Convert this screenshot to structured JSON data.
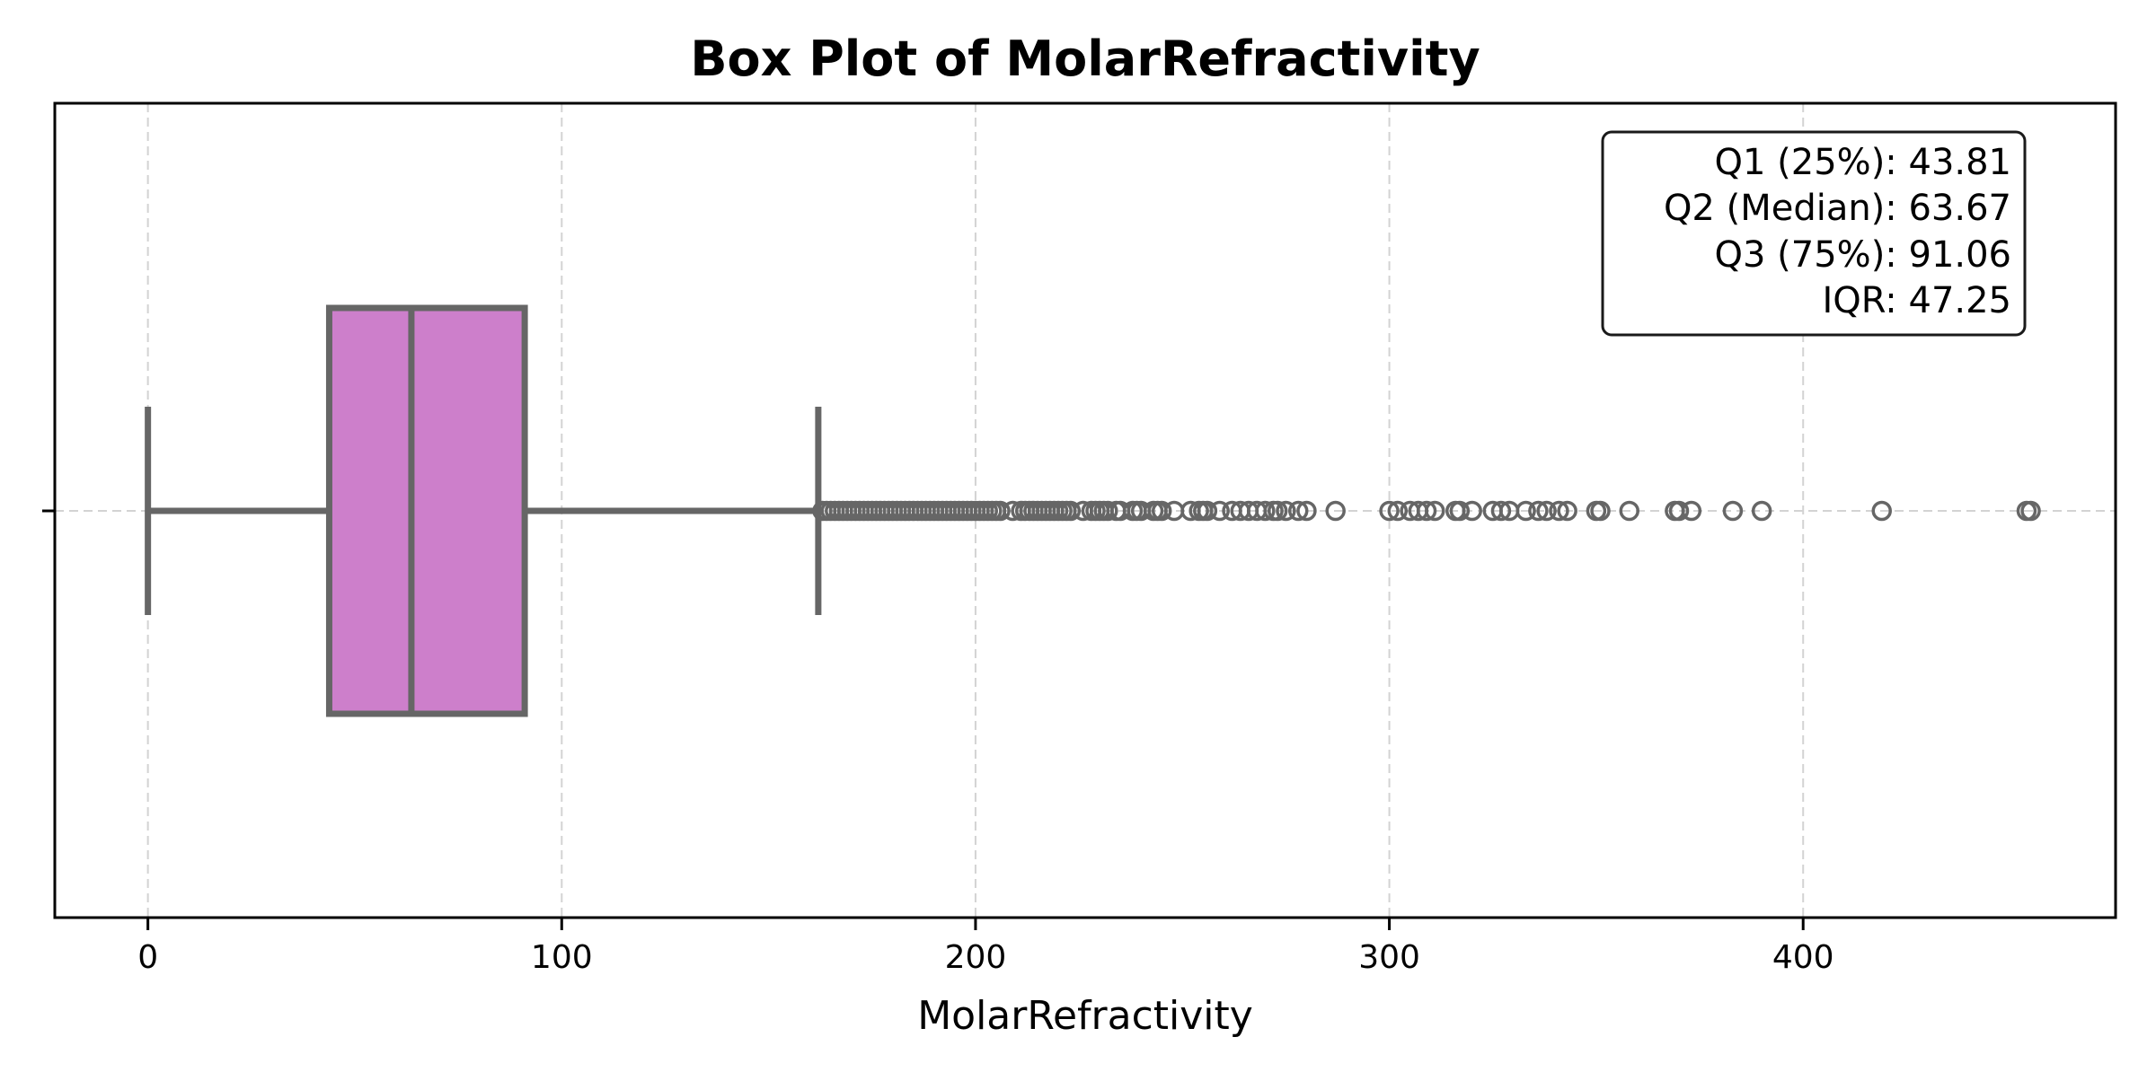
{
  "chart_data": {
    "type": "box",
    "title": "Box Plot of MolarRefractivity",
    "xlabel": "MolarRefractivity",
    "ylabel": "",
    "xlim": [
      -22.5,
      475.5
    ],
    "xticks": [
      0,
      100,
      200,
      300,
      400
    ],
    "xtick_labels": [
      "0",
      "100",
      "200",
      "300",
      "400"
    ],
    "grid": true,
    "box": {
      "whisker_low": 0,
      "q1": 43.81,
      "median": 63.67,
      "q3": 91.06,
      "whisker_high": 162
    },
    "outliers": [
      163,
      164,
      165,
      166,
      167,
      168,
      169,
      170,
      171,
      172,
      173,
      174,
      175,
      176,
      177,
      178,
      179,
      180,
      181,
      182,
      183,
      184,
      185,
      186,
      187,
      188,
      189,
      190,
      191,
      192,
      193,
      194,
      195,
      196,
      197,
      198,
      199,
      200,
      201,
      202,
      203,
      204,
      205,
      206,
      209,
      211,
      212,
      213,
      214,
      215,
      216,
      217,
      218,
      219,
      220,
      221,
      222,
      223,
      226,
      228,
      229,
      230,
      231,
      232,
      234,
      235,
      238,
      239,
      240,
      243,
      244,
      245,
      248,
      252,
      254,
      255,
      256,
      259,
      262,
      264,
      266,
      268,
      270,
      272,
      273,
      275,
      278,
      280,
      287,
      300,
      302,
      305,
      307,
      309,
      311,
      316,
      317,
      320,
      325,
      327,
      329,
      333,
      336,
      338,
      341,
      343,
      350,
      351,
      358,
      369,
      370,
      373,
      383,
      390,
      419,
      454,
      455
    ],
    "stats_box": {
      "lines": [
        "Q1 (25%): 43.81",
        "Q2 (Median): 63.67",
        "Q3 (75%): 91.06",
        "IQR: 47.25"
      ],
      "position": "top-right"
    },
    "colors": {
      "box_fill": "#cd7fcb",
      "line": "#666666",
      "grid": "#d3d3d3",
      "axes": "#000000"
    }
  }
}
